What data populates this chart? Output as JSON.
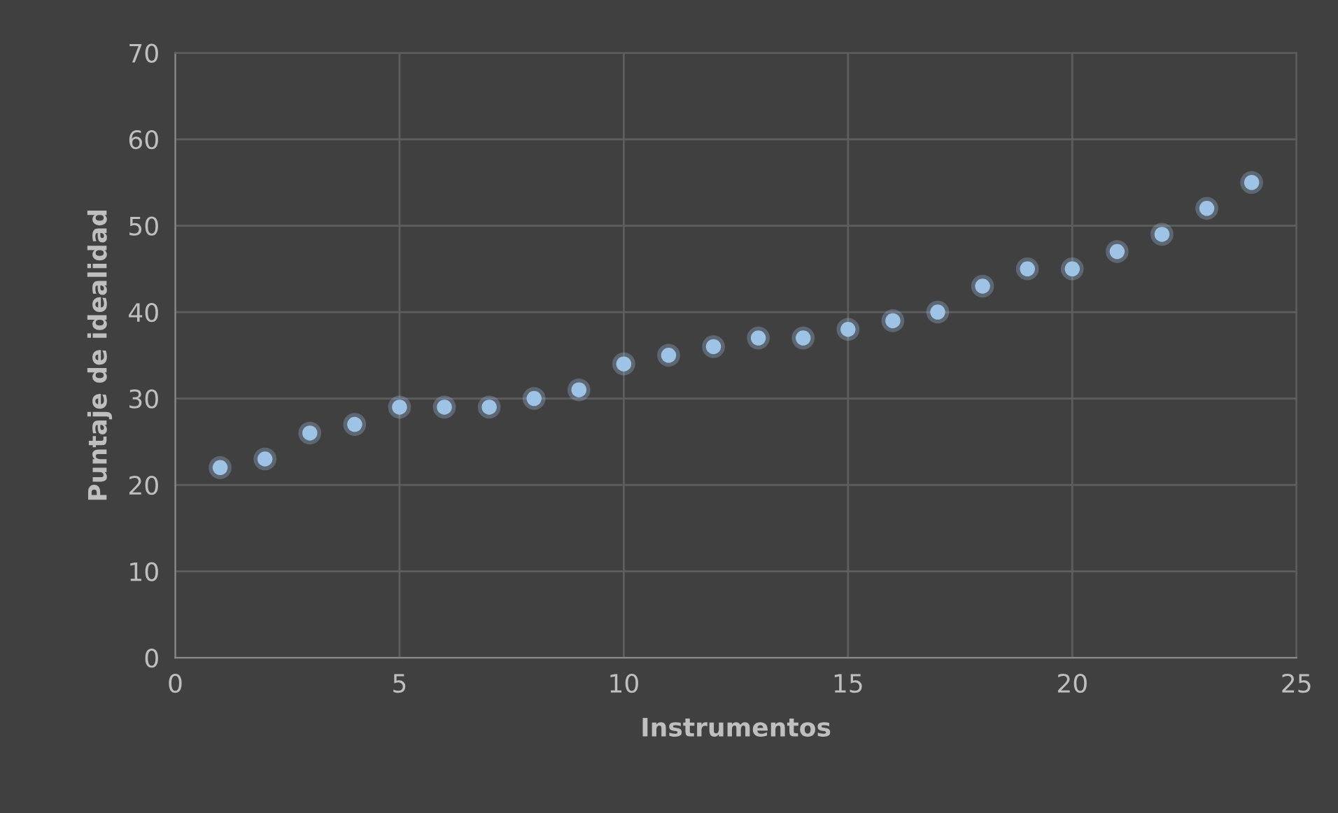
{
  "chart_data": {
    "type": "scatter",
    "xlabel": "Instrumentos",
    "ylabel": "Puntaje de idealidad",
    "x": [
      1,
      2,
      3,
      4,
      5,
      6,
      7,
      8,
      9,
      10,
      11,
      12,
      13,
      14,
      15,
      16,
      17,
      18,
      19,
      20,
      21,
      22,
      23,
      24
    ],
    "series": [
      {
        "color": "#9dc3e6",
        "values": [
          22,
          23,
          26,
          27,
          29,
          29,
          29,
          30,
          31,
          34,
          35,
          36,
          37,
          37,
          38,
          39,
          40,
          43,
          45,
          45,
          47,
          49,
          52,
          55
        ]
      }
    ],
    "xlim": [
      0,
      25
    ],
    "xticks": [
      0,
      5,
      10,
      15,
      20,
      25
    ],
    "ylim": [
      0,
      70
    ],
    "yticks": [
      0,
      10,
      20,
      30,
      40,
      50,
      60,
      70
    ],
    "grid": true,
    "marker": "circle",
    "legend": false
  }
}
